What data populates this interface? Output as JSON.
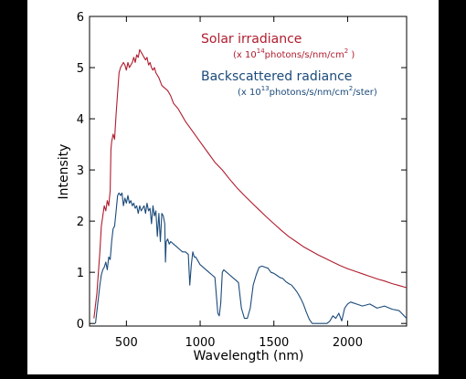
{
  "chart_data": {
    "type": "line",
    "xlabel": "Wavelength (nm)",
    "ylabel": "Intensity",
    "xlim": [
      250,
      2400
    ],
    "ylim": [
      -0.05,
      6.0
    ],
    "x_ticks": [
      500,
      1000,
      1500,
      2000
    ],
    "y_ticks": [
      0,
      1,
      2,
      3,
      4,
      5,
      6
    ],
    "annotations": [
      {
        "title": "Solar irradiance",
        "unit_prefix": "(x 10",
        "unit_exp": "14",
        "unit_mid": "photons/s/nm/cm",
        "unit_exp2": "2",
        "unit_suffix": " )",
        "color": "#b01c2e"
      },
      {
        "title": "Backscattered radiance",
        "unit_prefix": "(x 10",
        "unit_exp": "13",
        "unit_mid": "photons/s/nm/cm",
        "unit_exp2": "2",
        "unit_suffix": "/ster)",
        "color": "#1b4a7a"
      }
    ],
    "series": [
      {
        "color": "#b01c2e",
        "x": [
          280,
          300,
          320,
          330,
          340,
          350,
          360,
          370,
          380,
          390,
          395,
          400,
          410,
          420,
          430,
          440,
          450,
          460,
          470,
          480,
          490,
          500,
          510,
          520,
          530,
          540,
          550,
          560,
          570,
          580,
          590,
          600,
          610,
          620,
          630,
          640,
          650,
          660,
          670,
          680,
          690,
          700,
          720,
          740,
          760,
          780,
          800,
          820,
          850,
          880,
          900,
          950,
          1000,
          1050,
          1100,
          1150,
          1200,
          1250,
          1300,
          1350,
          1400,
          1450,
          1500,
          1550,
          1600,
          1650,
          1700,
          1750,
          1800,
          1850,
          1900,
          1950,
          2000,
          2050,
          2100,
          2150,
          2200,
          2250,
          2300,
          2350,
          2400
        ],
        "y": [
          0.1,
          0.6,
          1.4,
          1.9,
          2.1,
          2.3,
          2.2,
          2.4,
          2.3,
          2.6,
          3.4,
          3.55,
          3.7,
          3.6,
          4.1,
          4.5,
          4.9,
          5.0,
          5.05,
          5.1,
          5.05,
          4.95,
          5.1,
          5.0,
          5.05,
          5.1,
          5.2,
          5.1,
          5.25,
          5.2,
          5.35,
          5.3,
          5.25,
          5.2,
          5.15,
          5.2,
          5.05,
          5.1,
          5.0,
          4.95,
          5.0,
          4.9,
          4.8,
          4.65,
          4.6,
          4.55,
          4.45,
          4.3,
          4.2,
          4.05,
          3.95,
          3.75,
          3.55,
          3.35,
          3.15,
          3.0,
          2.82,
          2.65,
          2.5,
          2.36,
          2.22,
          2.08,
          1.95,
          1.82,
          1.7,
          1.6,
          1.5,
          1.42,
          1.34,
          1.27,
          1.2,
          1.13,
          1.07,
          1.02,
          0.97,
          0.92,
          0.87,
          0.83,
          0.78,
          0.74,
          0.7
        ]
      },
      {
        "color": "#1b4a7a",
        "x": [
          290,
          300,
          310,
          320,
          330,
          340,
          350,
          360,
          370,
          380,
          390,
          400,
          410,
          420,
          430,
          440,
          450,
          460,
          470,
          480,
          490,
          500,
          510,
          520,
          530,
          540,
          550,
          560,
          570,
          580,
          590,
          600,
          610,
          620,
          630,
          640,
          650,
          660,
          670,
          680,
          690,
          700,
          710,
          720,
          730,
          740,
          750,
          760,
          765,
          770,
          780,
          790,
          800,
          820,
          840,
          860,
          880,
          900,
          920,
          930,
          940,
          950,
          960,
          970,
          980,
          1000,
          1020,
          1040,
          1060,
          1080,
          1100,
          1110,
          1120,
          1130,
          1140,
          1150,
          1160,
          1180,
          1200,
          1220,
          1240,
          1260,
          1280,
          1300,
          1320,
          1340,
          1360,
          1380,
          1400,
          1420,
          1440,
          1460,
          1480,
          1500,
          1520,
          1540,
          1560,
          1580,
          1600,
          1620,
          1640,
          1660,
          1680,
          1700,
          1720,
          1740,
          1760,
          1780,
          1790,
          1800,
          1810,
          1820,
          1840,
          1860,
          1880,
          1900,
          1920,
          1940,
          1960,
          1980,
          2000,
          2020,
          2040,
          2060,
          2080,
          2100,
          2150,
          2200,
          2250,
          2300,
          2350,
          2400
        ],
        "y": [
          0.0,
          0.25,
          0.5,
          0.75,
          0.95,
          1.05,
          1.1,
          1.2,
          1.05,
          1.3,
          1.25,
          1.6,
          1.85,
          1.9,
          2.2,
          2.5,
          2.55,
          2.5,
          2.55,
          2.3,
          2.45,
          2.35,
          2.5,
          2.35,
          2.4,
          2.3,
          2.35,
          2.25,
          2.3,
          2.15,
          2.3,
          2.2,
          2.25,
          2.3,
          2.15,
          2.35,
          2.2,
          2.25,
          1.95,
          2.3,
          2.1,
          2.2,
          1.7,
          2.15,
          1.6,
          2.15,
          2.1,
          1.95,
          1.2,
          1.6,
          1.65,
          1.55,
          1.6,
          1.55,
          1.5,
          1.45,
          1.4,
          1.4,
          1.35,
          0.75,
          1.15,
          1.4,
          1.3,
          1.3,
          1.25,
          1.15,
          1.1,
          1.05,
          1.0,
          0.95,
          0.9,
          0.55,
          0.2,
          0.15,
          0.4,
          1.0,
          1.05,
          1.0,
          0.95,
          0.9,
          0.85,
          0.8,
          0.3,
          0.1,
          0.1,
          0.3,
          0.75,
          0.95,
          1.1,
          1.12,
          1.1,
          1.08,
          1.0,
          0.98,
          0.94,
          0.9,
          0.88,
          0.82,
          0.78,
          0.75,
          0.68,
          0.6,
          0.5,
          0.38,
          0.22,
          0.08,
          0.0,
          0.0,
          0.0,
          0.0,
          0.0,
          0.0,
          0.0,
          0.0,
          0.05,
          0.15,
          0.1,
          0.2,
          0.05,
          0.3,
          0.38,
          0.42,
          0.4,
          0.38,
          0.36,
          0.34,
          0.38,
          0.3,
          0.34,
          0.28,
          0.25,
          0.1
        ]
      }
    ]
  }
}
